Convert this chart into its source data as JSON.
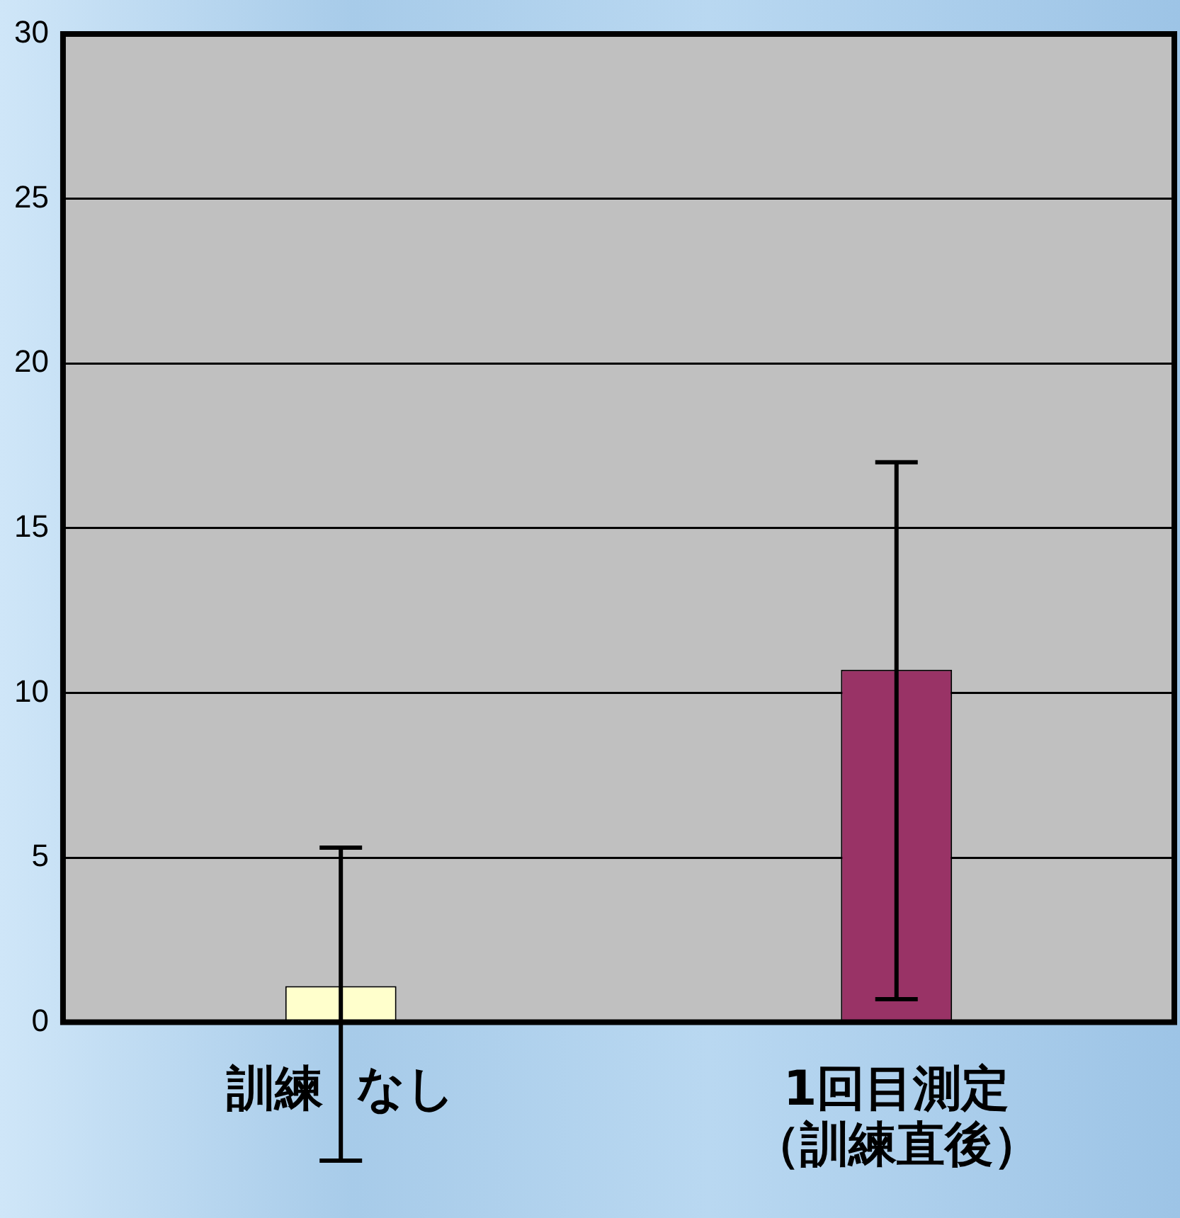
{
  "chart_data": {
    "type": "bar",
    "categories": [
      "訓練  なし",
      "1回目測定（訓練直後）"
    ],
    "values": [
      1.1,
      10.7
    ],
    "colors": [
      "#ffffcc",
      "#993366"
    ],
    "errors": [
      [
        -4.2,
        5.3
      ],
      [
        0.7,
        17.0
      ]
    ],
    "ylim": [
      0,
      30
    ],
    "yticks": [
      0,
      5,
      10,
      15,
      20,
      25,
      30
    ],
    "grid": "y",
    "legend": false
  }
}
